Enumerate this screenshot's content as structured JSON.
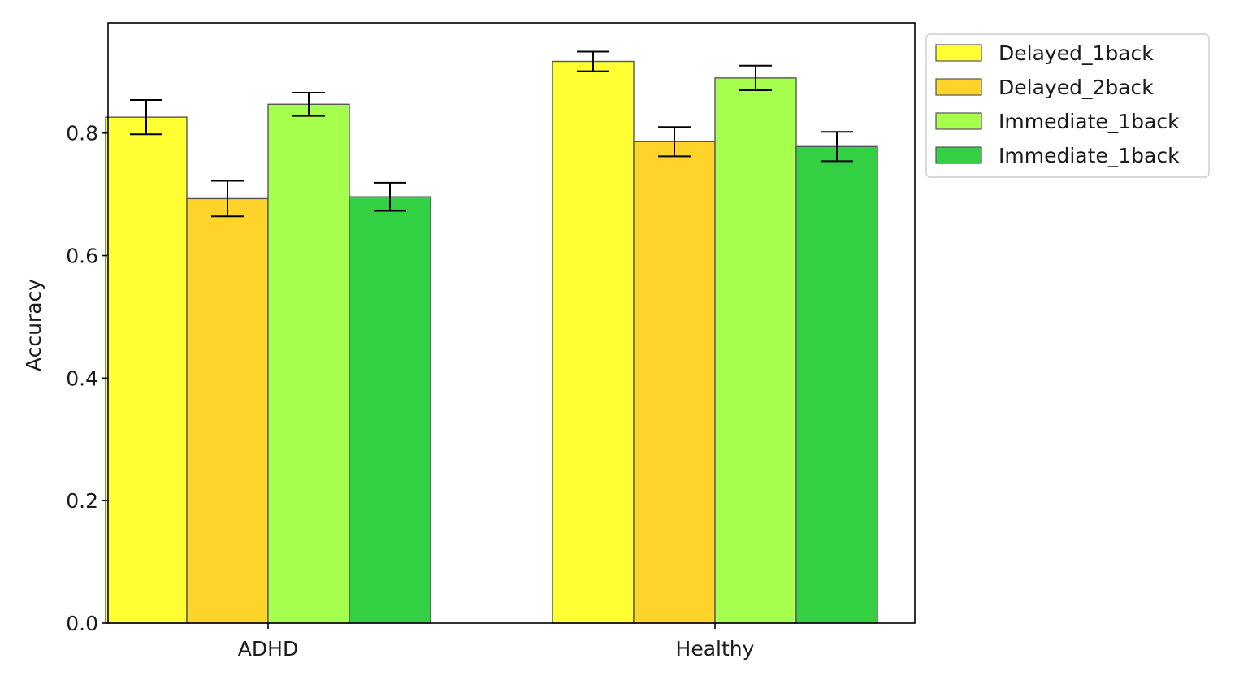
{
  "chart_data": {
    "type": "bar",
    "categories": [
      "ADHD",
      "Healthy"
    ],
    "series": [
      {
        "name": "Delayed_1back",
        "color": "#ffff33",
        "values": [
          0.826,
          0.917
        ],
        "errors": [
          0.028,
          0.016
        ]
      },
      {
        "name": "Delayed_2back",
        "color": "#ffd42a",
        "values": [
          0.693,
          0.786
        ],
        "errors": [
          0.029,
          0.024
        ]
      },
      {
        "name": "Immediate_1back",
        "color": "#a6ff4d",
        "values": [
          0.847,
          0.89
        ],
        "errors": [
          0.019,
          0.02
        ]
      },
      {
        "name": "Immediate_1back",
        "color": "#33d044",
        "values": [
          0.696,
          0.778
        ],
        "errors": [
          0.023,
          0.024
        ]
      }
    ],
    "title": "",
    "xlabel": "",
    "ylabel": "Accuracy",
    "ylim": [
      0,
      0.98
    ],
    "yticks": [
      "0.0",
      "0.2",
      "0.4",
      "0.6",
      "0.8"
    ],
    "legend_position": "outside-top-right",
    "grid": false
  }
}
